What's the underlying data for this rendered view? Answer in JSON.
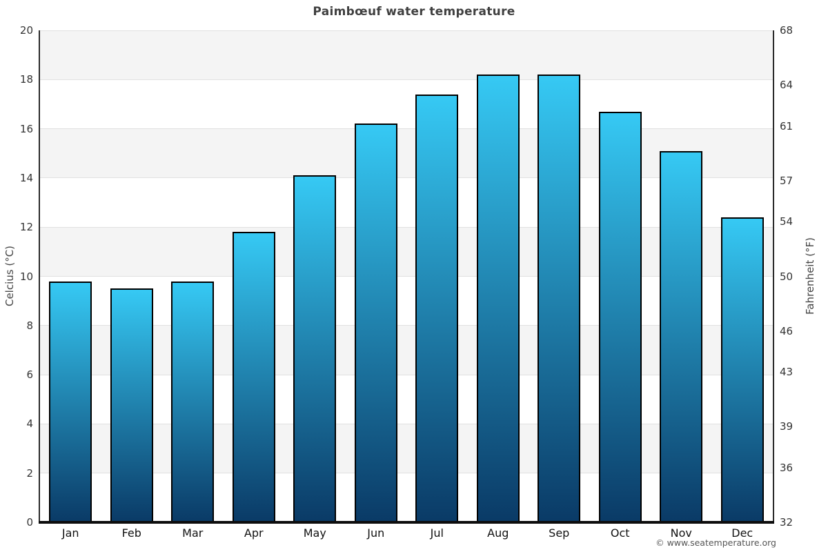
{
  "title": "Paimbœuf water temperature",
  "footer": "© www.seatemperature.org",
  "chart_data": {
    "type": "bar",
    "title": "Paimbœuf water temperature",
    "categories": [
      "Jan",
      "Feb",
      "Mar",
      "Apr",
      "May",
      "Jun",
      "Jul",
      "Aug",
      "Sep",
      "Oct",
      "Nov",
      "Dec"
    ],
    "values": [
      9.8,
      9.5,
      9.8,
      11.8,
      14.1,
      16.2,
      17.4,
      18.2,
      18.2,
      16.7,
      15.1,
      12.4
    ],
    "series_name": "Water temperature (°C)",
    "xlabel": "",
    "ylabel_left": "Celcius (°C)",
    "ylabel_right": "Fahrenheit (°F)",
    "ylim_left": [
      0,
      20
    ],
    "ylim_right": [
      32,
      68
    ],
    "yticks_left": [
      0,
      2,
      4,
      6,
      8,
      10,
      12,
      14,
      16,
      18,
      20
    ],
    "yticks_right": [
      32,
      36,
      39,
      43,
      46,
      50,
      54,
      57,
      61,
      64,
      68
    ],
    "grid": true,
    "legend_position": "none",
    "band_fill_ticks_top": [
      20,
      16,
      12,
      8,
      4
    ],
    "colors": {
      "bar_gradient_top": "#36c9f4",
      "bar_gradient_bottom": "#0a3a66",
      "bar_border": "#000000",
      "band": "#f4f4f4",
      "gridline": "#e0e0e0",
      "axis_line": "#2a2a2a",
      "title_text": "#404040",
      "tick_text": "#333333",
      "month_text": "#111111",
      "footer_text": "#555555"
    }
  }
}
